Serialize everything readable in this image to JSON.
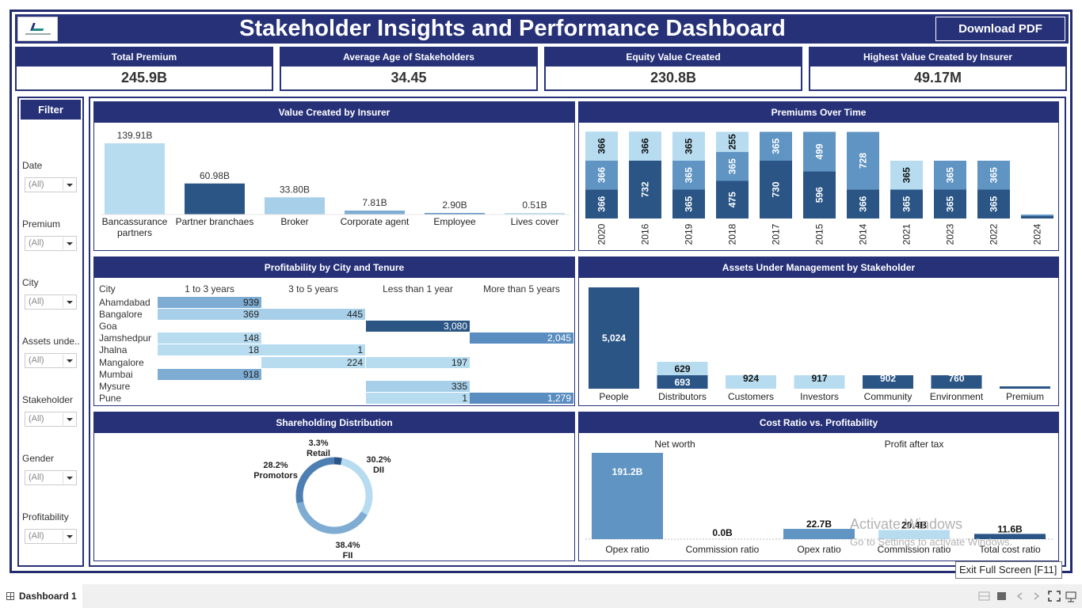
{
  "header": {
    "title": "Stakeholder Insights and Performance Dashboard",
    "download_label": "Download PDF"
  },
  "kpis": [
    {
      "label": "Total Premium",
      "value": "245.9B"
    },
    {
      "label": "Average Age of Stakeholders",
      "value": "34.45"
    },
    {
      "label": "Equity Value Created",
      "value": "230.8B"
    },
    {
      "label": "Highest Value Created by Insurer",
      "value": "49.17M"
    }
  ],
  "filter": {
    "title": "Filter",
    "items": [
      {
        "label": "Date",
        "value": "(All)"
      },
      {
        "label": "Premium",
        "value": "(All)"
      },
      {
        "label": "City",
        "value": "(All)"
      },
      {
        "label": "Assets unde..",
        "value": "(All)"
      },
      {
        "label": "Stakeholder",
        "value": "(All)"
      },
      {
        "label": "Gender",
        "value": "(All)"
      },
      {
        "label": "Profitability",
        "value": "(All)"
      }
    ]
  },
  "panels": {
    "value_by_insurer": "Value Created by Insurer",
    "premiums_over_time": "Premiums Over Time",
    "profitability": "Profitability by City and Tenure",
    "aum": "Assets Under Management by Stakeholder",
    "shareholding": "Shareholding Distribution",
    "cost_ratio": "Cost Ratio vs. Profitability"
  },
  "colors": {
    "navy": "#263178",
    "light_blue": "#b7dcf0",
    "mid_blue": "#5f94c3",
    "dark_blue": "#2a5585",
    "pale_blue": "#a7cfe9"
  },
  "chart_data": [
    {
      "type": "bar",
      "title": "Value Created by Insurer",
      "categories": [
        "Bancassurance partners",
        "Partner branchaes",
        "Broker",
        "Corporate agent",
        "Employee",
        "Lives cover"
      ],
      "labels": [
        "139.91B",
        "60.98B",
        "33.80B",
        "7.81B",
        "2.90B",
        "0.51B"
      ],
      "values": [
        139.91,
        60.98,
        33.8,
        7.81,
        2.9,
        0.51
      ]
    },
    {
      "type": "bar",
      "title": "Premiums Over Time",
      "stacked": true,
      "categories": [
        "2020",
        "2016",
        "2019",
        "2018",
        "2017",
        "2015",
        "2014",
        "2021",
        "2023",
        "2022",
        "2024"
      ],
      "series": [
        {
          "values": [
            366,
            732,
            365,
            475,
            730,
            596,
            366,
            365,
            365,
            365,
            0
          ]
        },
        {
          "values": [
            366,
            0,
            365,
            365,
            0,
            0,
            0,
            0,
            0,
            0,
            0
          ]
        },
        {
          "values": [
            366,
            366,
            365,
            255,
            365,
            499,
            728,
            365,
            365,
            365,
            0
          ]
        }
      ]
    },
    {
      "type": "table",
      "title": "Profitability by City and Tenure",
      "columns": [
        "City",
        "1 to 3 years",
        "3 to 5 years",
        "Less than 1 year",
        "More than 5 years"
      ],
      "rows": [
        [
          "Ahamdabad",
          "939",
          "",
          "",
          ""
        ],
        [
          "Bangalore",
          "369",
          "445",
          "",
          ""
        ],
        [
          "Goa",
          "",
          "",
          "3,080",
          ""
        ],
        [
          "Jamshedpur",
          "148",
          "",
          "",
          "2,045"
        ],
        [
          "Jhalna",
          "18",
          "1",
          "",
          ""
        ],
        [
          "Mangalore",
          "",
          "224",
          "197",
          ""
        ],
        [
          "Mumbai",
          "918",
          "",
          "",
          ""
        ],
        [
          "Mysure",
          "",
          "",
          "335",
          ""
        ],
        [
          "Pune",
          "",
          "",
          "1",
          "1,279"
        ]
      ]
    },
    {
      "type": "bar",
      "title": "Assets Under Management by Stakeholder",
      "categories": [
        "People",
        "Distributors",
        "Customers",
        "Investors",
        "Community",
        "Environment",
        "Premium"
      ],
      "series": [
        {
          "values": [
            5024,
            693,
            924,
            917,
            902,
            760,
            0
          ]
        },
        {
          "values": [
            0,
            629,
            0,
            0,
            0,
            0,
            0
          ]
        }
      ]
    },
    {
      "type": "pie",
      "title": "Shareholding Distribution",
      "categories": [
        "Retail",
        "DII",
        "FII",
        "Promotors"
      ],
      "labels": [
        "3.3%",
        "30.2%",
        "38.4%",
        "28.2%"
      ],
      "values": [
        3.3,
        30.2,
        38.4,
        28.2
      ]
    },
    {
      "type": "bar",
      "title": "Cost Ratio vs. Profitability",
      "groups": [
        "Net worth",
        "Profit after tax"
      ],
      "categories": [
        "Opex ratio",
        "Commission ratio",
        "Opex ratio",
        "Commission ratio",
        "Total cost ratio"
      ],
      "labels": [
        "191.2B",
        "0.0B",
        "22.7B",
        "20.4B",
        "11.6B"
      ],
      "values": [
        191.2,
        0.0,
        22.7,
        20.4,
        11.6
      ]
    }
  ],
  "taskbar": {
    "tab_label": "Dashboard 1",
    "tooltip": "Exit Full Screen [F11]"
  },
  "watermark": {
    "line1": "Activate Windows",
    "line2": "Go to Settings to activate Windows."
  }
}
